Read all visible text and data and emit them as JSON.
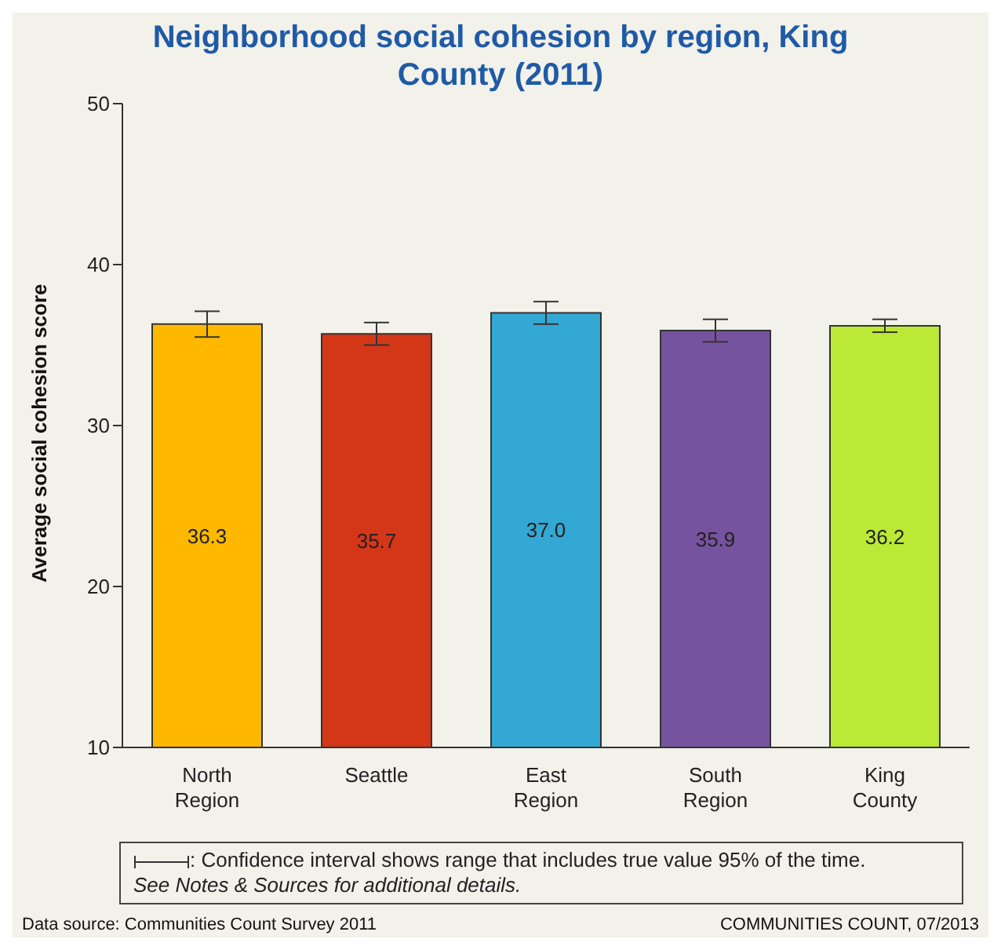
{
  "chart_data": {
    "type": "bar",
    "title": "Neighborhood social cohesion by region, King County (2011)",
    "ylabel": "Average social cohesion score",
    "categories": [
      "North Region",
      "Seattle",
      "East Region",
      "South Region",
      "King County"
    ],
    "values": [
      36.3,
      35.7,
      37.0,
      35.9,
      36.2
    ],
    "colors": [
      "#ffb800",
      "#d43618",
      "#34a8d4",
      "#76539e",
      "#bce935"
    ],
    "errors": [
      0.8,
      0.7,
      0.7,
      0.7,
      0.4
    ],
    "ylim": [
      10,
      50
    ],
    "yticks": [
      10,
      20,
      30,
      40,
      50
    ],
    "grid": false,
    "legend": false,
    "value_labels": [
      "36.3",
      "35.7",
      "37.0",
      "35.9",
      "36.2"
    ],
    "annotations": [
      ": Confidence interval shows range that includes true value 95% of the time.",
      "See Notes & Sources for additional details.",
      "Data source: Communities Count Survey 2011",
      "COMMUNITIES  COUNT, 07/2013"
    ]
  }
}
